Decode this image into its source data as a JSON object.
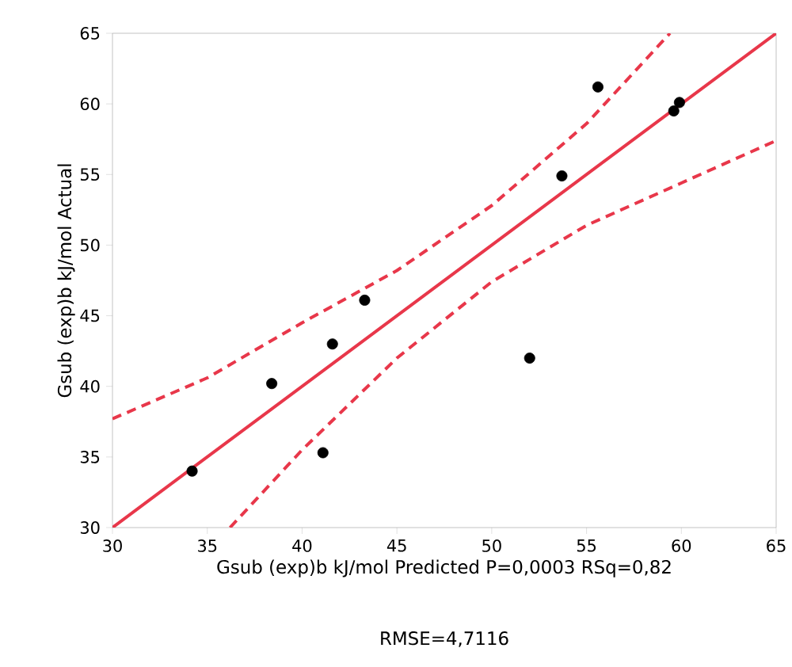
{
  "chart_data": {
    "type": "scatter",
    "xlabel": "Gsub (exp)b kJ/mol Predicted P=0,0003 RSq=0,82",
    "ylabel": "Gsub (exp)b kJ/mol Actual",
    "annotations": [
      "RMSE=4,7116"
    ],
    "xlim": [
      30,
      65
    ],
    "ylim": [
      30,
      65
    ],
    "xticks": [
      30,
      35,
      40,
      45,
      50,
      55,
      60,
      65
    ],
    "yticks": [
      30,
      35,
      40,
      45,
      50,
      55,
      60,
      65
    ],
    "grid": false,
    "series": [
      {
        "color": "#000000",
        "marker": "circle",
        "x": [
          34.2,
          38.4,
          41.1,
          41.6,
          43.3,
          52.0,
          53.7,
          55.6,
          59.6,
          59.9
        ],
        "values": [
          34.0,
          40.2,
          35.3,
          43.0,
          46.1,
          42.0,
          54.9,
          61.2,
          59.5,
          60.1
        ]
      },
      {
        "type": "line",
        "color": "#e8374a",
        "line_style": "solid",
        "marker": "none",
        "x": [
          30,
          65
        ],
        "values": [
          30,
          65
        ]
      },
      {
        "type": "line",
        "color": "#e8374a",
        "line_style": "dashed",
        "marker": "none",
        "x": [
          30,
          35,
          40,
          45,
          50,
          55,
          59.4
        ],
        "values": [
          37.7,
          40.6,
          44.5,
          48.2,
          52.8,
          58.6,
          65
        ]
      },
      {
        "type": "line",
        "color": "#e8374a",
        "line_style": "dashed",
        "marker": "none",
        "x": [
          36.2,
          40,
          45,
          50,
          55,
          60,
          65
        ],
        "values": [
          30,
          35.5,
          42.0,
          47.4,
          51.4,
          54.4,
          57.4
        ]
      }
    ]
  }
}
